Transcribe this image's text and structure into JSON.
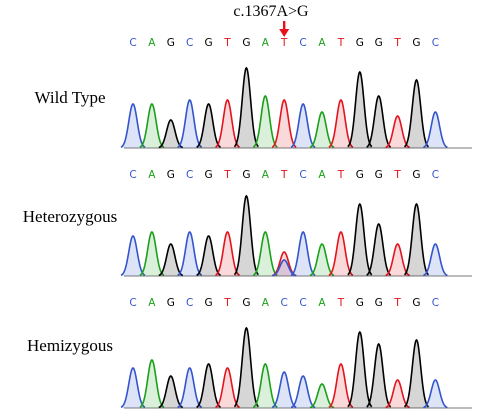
{
  "mutation": {
    "label": "c.1367A>G",
    "arrow_color": "#e8101a",
    "position_index": 8
  },
  "base_colors": {
    "A": "#1aa01a",
    "C": "#3355cc",
    "G": "#000000",
    "T": "#e3141e"
  },
  "tracks": [
    {
      "label": "Wild Type",
      "bases": [
        "C",
        "A",
        "G",
        "C",
        "G",
        "T",
        "G",
        "A",
        "T",
        "C",
        "A",
        "T",
        "G",
        "G",
        "T",
        "G",
        "C"
      ],
      "heights": [
        0.55,
        0.55,
        0.35,
        0.6,
        0.55,
        0.6,
        1.0,
        0.65,
        0.6,
        0.55,
        0.45,
        0.6,
        0.95,
        0.65,
        0.4,
        0.85,
        0.45
      ],
      "secondary": []
    },
    {
      "label": "Heterozygous",
      "bases": [
        "C",
        "A",
        "G",
        "C",
        "G",
        "T",
        "G",
        "A",
        "T",
        "C",
        "A",
        "T",
        "G",
        "G",
        "T",
        "G",
        "C"
      ],
      "heights": [
        0.5,
        0.55,
        0.4,
        0.55,
        0.5,
        0.55,
        1.0,
        0.55,
        0.3,
        0.55,
        0.4,
        0.55,
        0.9,
        0.65,
        0.4,
        0.9,
        0.4
      ],
      "secondary": [
        {
          "index": 8,
          "base": "C",
          "height": 0.2
        }
      ]
    },
    {
      "label": "Hemizygous",
      "bases": [
        "C",
        "A",
        "G",
        "C",
        "G",
        "T",
        "G",
        "A",
        "C",
        "C",
        "A",
        "T",
        "G",
        "G",
        "T",
        "G",
        "C"
      ],
      "heights": [
        0.5,
        0.6,
        0.4,
        0.5,
        0.55,
        0.5,
        1.0,
        0.55,
        0.45,
        0.4,
        0.3,
        0.55,
        0.95,
        0.8,
        0.35,
        0.85,
        0.35
      ],
      "secondary": []
    }
  ]
}
